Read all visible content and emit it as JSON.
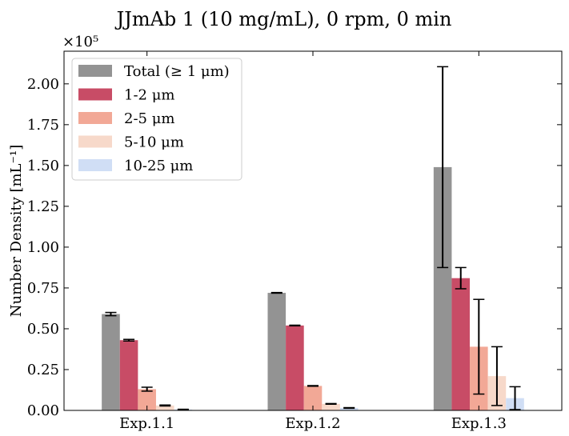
{
  "chart_data": {
    "type": "bar",
    "title": "JJmAb 1 (10 mg/mL), 0 rpm, 0 min",
    "ylabel": "Number Density [mL⁻¹]",
    "y_multiplier": "×10⁵",
    "ylim": [
      0,
      2.2
    ],
    "y_ticks": [
      "0.00",
      "0.25",
      "0.50",
      "0.75",
      "1.00",
      "1.25",
      "1.50",
      "1.75",
      "2.00"
    ],
    "categories": [
      "Exp.1.1",
      "Exp.1.2",
      "Exp.1.3"
    ],
    "series": [
      {
        "name": "Total (≥ 1 μm)",
        "color": "#939393",
        "values": [
          0.59,
          0.72,
          1.49
        ],
        "errors": [
          0.01,
          0.002,
          0.615
        ]
      },
      {
        "name": "1-2 μm",
        "color": "#c84c66",
        "values": [
          0.43,
          0.52,
          0.81
        ],
        "errors": [
          0.005,
          0.002,
          0.065
        ]
      },
      {
        "name": "2-5 μm",
        "color": "#f2a896",
        "values": [
          0.13,
          0.15,
          0.39
        ],
        "errors": [
          0.012,
          0.002,
          0.29
        ]
      },
      {
        "name": "5-10 μm",
        "color": "#f7d9ca",
        "values": [
          0.03,
          0.04,
          0.21
        ],
        "errors": [
          0.003,
          0.002,
          0.18
        ]
      },
      {
        "name": "10-25 μm",
        "color": "#d0def5",
        "values": [
          0.005,
          0.015,
          0.075
        ],
        "errors": [
          0.002,
          0.002,
          0.07
        ]
      }
    ],
    "legend_position": "upper-left",
    "grid": false
  }
}
